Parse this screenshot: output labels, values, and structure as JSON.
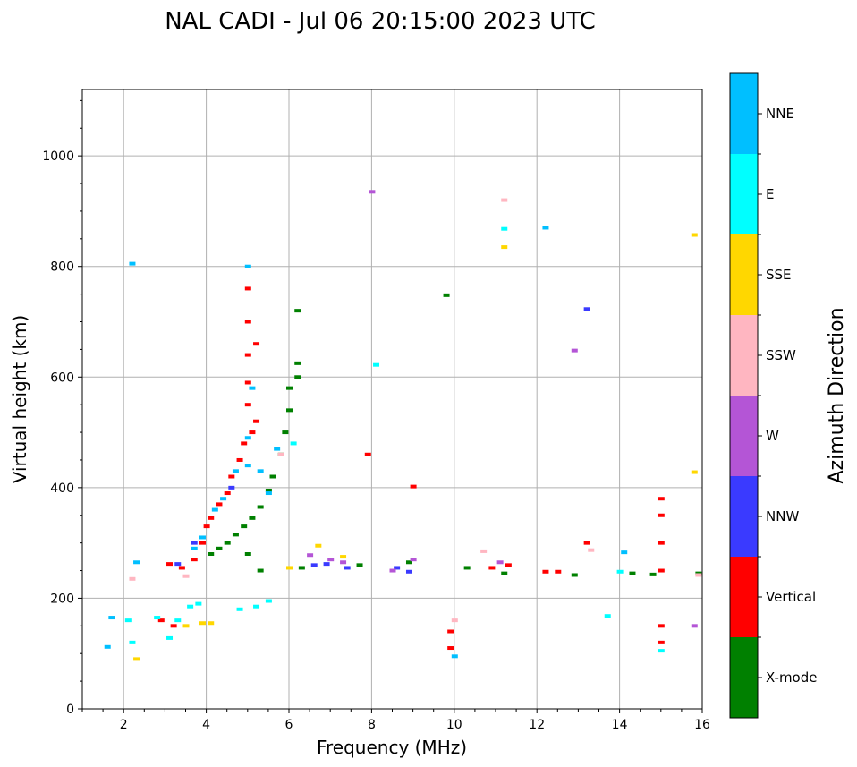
{
  "chart_data": {
    "type": "scatter",
    "title": "NAL CADI - Jul 06 20:15:00 2023 UTC",
    "xlabel": "Frequency (MHz)",
    "ylabel": "Virtual height (km)",
    "xlim": [
      1,
      16
    ],
    "ylim": [
      0,
      1120
    ],
    "grid": true,
    "x_ticks": [
      2,
      4,
      6,
      8,
      10,
      12,
      14,
      16
    ],
    "x_tick_labels": [
      "2",
      "4",
      "6",
      "8",
      "10",
      "12",
      "14",
      "16"
    ],
    "y_ticks": [
      0,
      200,
      400,
      600,
      800,
      1000
    ],
    "y_tick_labels": [
      "0",
      "200",
      "400",
      "600",
      "800",
      "1000"
    ],
    "colorbar": {
      "label": "Azimuth Direction",
      "categories": [
        "X-mode",
        "Vertical",
        "NNW",
        "W",
        "SSW",
        "SSE",
        "E",
        "NNE"
      ],
      "colors": [
        "#008000",
        "#ff0000",
        "#3a3aff",
        "#b455d6",
        "#ffb6c1",
        "#ffd700",
        "#00ffff",
        "#00bfff"
      ]
    },
    "series": [
      {
        "name": "X-mode",
        "points": [
          [
            4.1,
            280
          ],
          [
            4.3,
            290
          ],
          [
            4.5,
            300
          ],
          [
            4.7,
            315
          ],
          [
            4.9,
            330
          ],
          [
            5.1,
            345
          ],
          [
            5.3,
            365
          ],
          [
            5.5,
            395
          ],
          [
            5.6,
            420
          ],
          [
            5.8,
            460
          ],
          [
            5.9,
            500
          ],
          [
            6.0,
            540
          ],
          [
            6.0,
            580
          ],
          [
            6.2,
            600
          ],
          [
            6.2,
            625
          ],
          [
            6.2,
            720
          ],
          [
            5.0,
            280
          ],
          [
            5.3,
            250
          ],
          [
            6.3,
            255
          ],
          [
            7.7,
            260
          ],
          [
            8.9,
            265
          ],
          [
            10.3,
            255
          ],
          [
            11.2,
            245
          ],
          [
            12.9,
            242
          ],
          [
            14.3,
            245
          ],
          [
            14.8,
            243
          ],
          [
            15.9,
            245
          ],
          [
            9.8,
            748
          ]
        ]
      },
      {
        "name": "Vertical",
        "points": [
          [
            3.1,
            262
          ],
          [
            3.4,
            255
          ],
          [
            3.7,
            270
          ],
          [
            3.9,
            300
          ],
          [
            4.0,
            330
          ],
          [
            4.1,
            345
          ],
          [
            4.3,
            370
          ],
          [
            4.5,
            390
          ],
          [
            4.6,
            420
          ],
          [
            4.8,
            450
          ],
          [
            4.9,
            480
          ],
          [
            5.1,
            500
          ],
          [
            5.2,
            520
          ],
          [
            5.0,
            550
          ],
          [
            5.0,
            590
          ],
          [
            5.0,
            640
          ],
          [
            5.0,
            700
          ],
          [
            5.0,
            760
          ],
          [
            5.2,
            660
          ],
          [
            2.9,
            160
          ],
          [
            3.2,
            150
          ],
          [
            7.9,
            460
          ],
          [
            9.0,
            402
          ],
          [
            9.9,
            110
          ],
          [
            9.9,
            140
          ],
          [
            10.9,
            255
          ],
          [
            11.3,
            260
          ],
          [
            12.2,
            248
          ],
          [
            12.5,
            248
          ],
          [
            13.2,
            300
          ],
          [
            15.0,
            250
          ],
          [
            15.0,
            300
          ],
          [
            15.0,
            350
          ],
          [
            15.0,
            380
          ],
          [
            15.0,
            150
          ],
          [
            15.0,
            120
          ]
        ]
      },
      {
        "name": "NNW",
        "points": [
          [
            3.3,
            262
          ],
          [
            6.6,
            260
          ],
          [
            6.9,
            262
          ],
          [
            7.4,
            255
          ],
          [
            8.6,
            255
          ],
          [
            8.9,
            248
          ],
          [
            13.2,
            723
          ],
          [
            3.7,
            300
          ],
          [
            4.6,
            400
          ]
        ]
      },
      {
        "name": "W",
        "points": [
          [
            6.5,
            278
          ],
          [
            7.0,
            270
          ],
          [
            7.3,
            265
          ],
          [
            8.5,
            250
          ],
          [
            9.0,
            270
          ],
          [
            11.1,
            265
          ],
          [
            12.9,
            648
          ],
          [
            15.8,
            150
          ],
          [
            8.0,
            935
          ]
        ]
      },
      {
        "name": "SSW",
        "points": [
          [
            2.2,
            235
          ],
          [
            3.5,
            240
          ],
          [
            10.0,
            160
          ],
          [
            10.7,
            285
          ],
          [
            11.2,
            920
          ],
          [
            13.3,
            287
          ],
          [
            15.9,
            242
          ],
          [
            5.8,
            460
          ]
        ]
      },
      {
        "name": "SSE",
        "points": [
          [
            2.3,
            90
          ],
          [
            3.5,
            150
          ],
          [
            3.9,
            155
          ],
          [
            4.1,
            155
          ],
          [
            6.0,
            255
          ],
          [
            6.7,
            295
          ],
          [
            7.3,
            275
          ],
          [
            11.2,
            835
          ],
          [
            15.8,
            428
          ],
          [
            15.8,
            857
          ]
        ]
      },
      {
        "name": "E",
        "points": [
          [
            2.2,
            120
          ],
          [
            2.8,
            165
          ],
          [
            3.1,
            128
          ],
          [
            3.3,
            160
          ],
          [
            3.6,
            185
          ],
          [
            3.8,
            190
          ],
          [
            4.8,
            180
          ],
          [
            5.2,
            185
          ],
          [
            5.5,
            195
          ],
          [
            2.1,
            160
          ],
          [
            8.1,
            622
          ],
          [
            11.2,
            868
          ],
          [
            13.7,
            168
          ],
          [
            14.0,
            248
          ],
          [
            15.0,
            105
          ],
          [
            6.1,
            480
          ]
        ]
      },
      {
        "name": "NNE",
        "points": [
          [
            1.7,
            165
          ],
          [
            1.6,
            112
          ],
          [
            2.2,
            805
          ],
          [
            2.3,
            265
          ],
          [
            3.7,
            290
          ],
          [
            3.9,
            310
          ],
          [
            4.2,
            360
          ],
          [
            4.4,
            380
          ],
          [
            4.7,
            430
          ],
          [
            5.0,
            440
          ],
          [
            5.0,
            490
          ],
          [
            5.1,
            580
          ],
          [
            5.0,
            800
          ],
          [
            5.3,
            430
          ],
          [
            5.5,
            390
          ],
          [
            5.7,
            470
          ],
          [
            10.0,
            95
          ],
          [
            12.2,
            870
          ],
          [
            14.1,
            283
          ]
        ]
      }
    ]
  }
}
